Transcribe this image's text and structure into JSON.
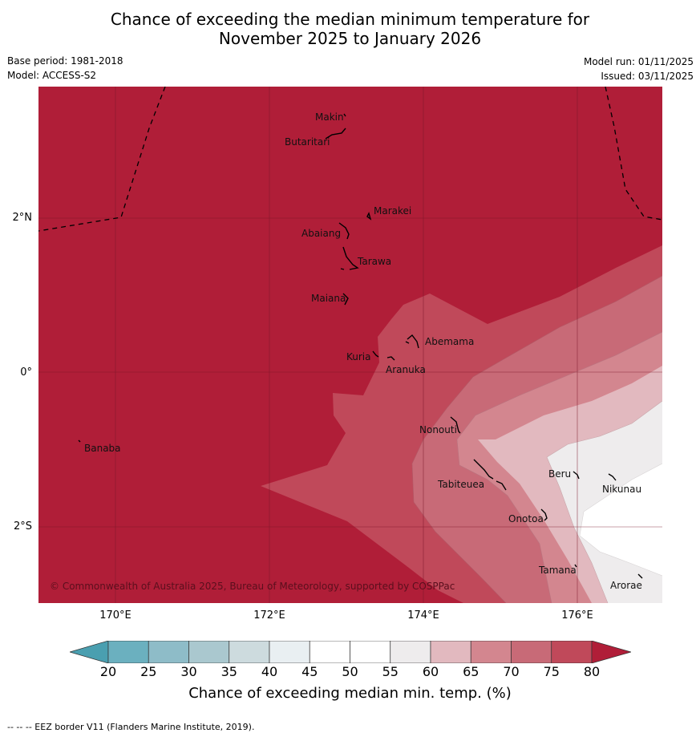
{
  "title": {
    "line1": "Chance of exceeding the median minimum temperature for",
    "line2": "November 2025 to January 2026"
  },
  "meta": {
    "base_period": "Base period: 1981-2018",
    "model": "Model: ACCESS-S2",
    "model_run": "Model run: 01/11/2025",
    "issued": "Issued: 03/11/2025"
  },
  "map": {
    "x_ticks": [
      "170°E",
      "172°E",
      "174°E",
      "176°E"
    ],
    "y_ticks": [
      "2°N",
      "0°",
      "2°S"
    ],
    "places": [
      "Makin",
      "Butaritari",
      "Marakei",
      "Abaiang",
      "Tarawa",
      "Maiana",
      "Abemama",
      "Kuria",
      "Aranuka",
      "Banaba",
      "Nonouti",
      "Beru",
      "Nikunau",
      "Tabiteuea",
      "Onotoa",
      "Tamana",
      "Arorae"
    ],
    "copyright": "© Commonwealth of Australia 2025, Bureau of Meteorology, supported by COSPPac"
  },
  "colorbar": {
    "labels": [
      "20",
      "25",
      "30",
      "35",
      "40",
      "45",
      "50",
      "55",
      "60",
      "65",
      "70",
      "75",
      "80"
    ],
    "colors": [
      "#6bb0bf",
      "#8ebcc8",
      "#aac8cf",
      "#cddbde",
      "#e9eff2",
      "#ffffff",
      "#ffffff",
      "#eeeced",
      "#e2b9bf",
      "#d3868f",
      "#c86a77",
      "#c0495a"
    ],
    "under_color": "#4a9fb0",
    "over_color": "#b01e38",
    "title": "Chance of exceeding median min. temp. (%)"
  },
  "colors": {
    "band_75_80": "#c0495a",
    "band_70_75": "#c86a77",
    "band_65_70": "#d3868f",
    "band_60_65": "#e2b9bf",
    "band_55_60": "#eeeced",
    "band_50_55": "#ffffff",
    "band_over_80": "#b01e38"
  },
  "footer": "--  --  -- EEZ border V11 (Flanders Marine Institute, 2019)."
}
